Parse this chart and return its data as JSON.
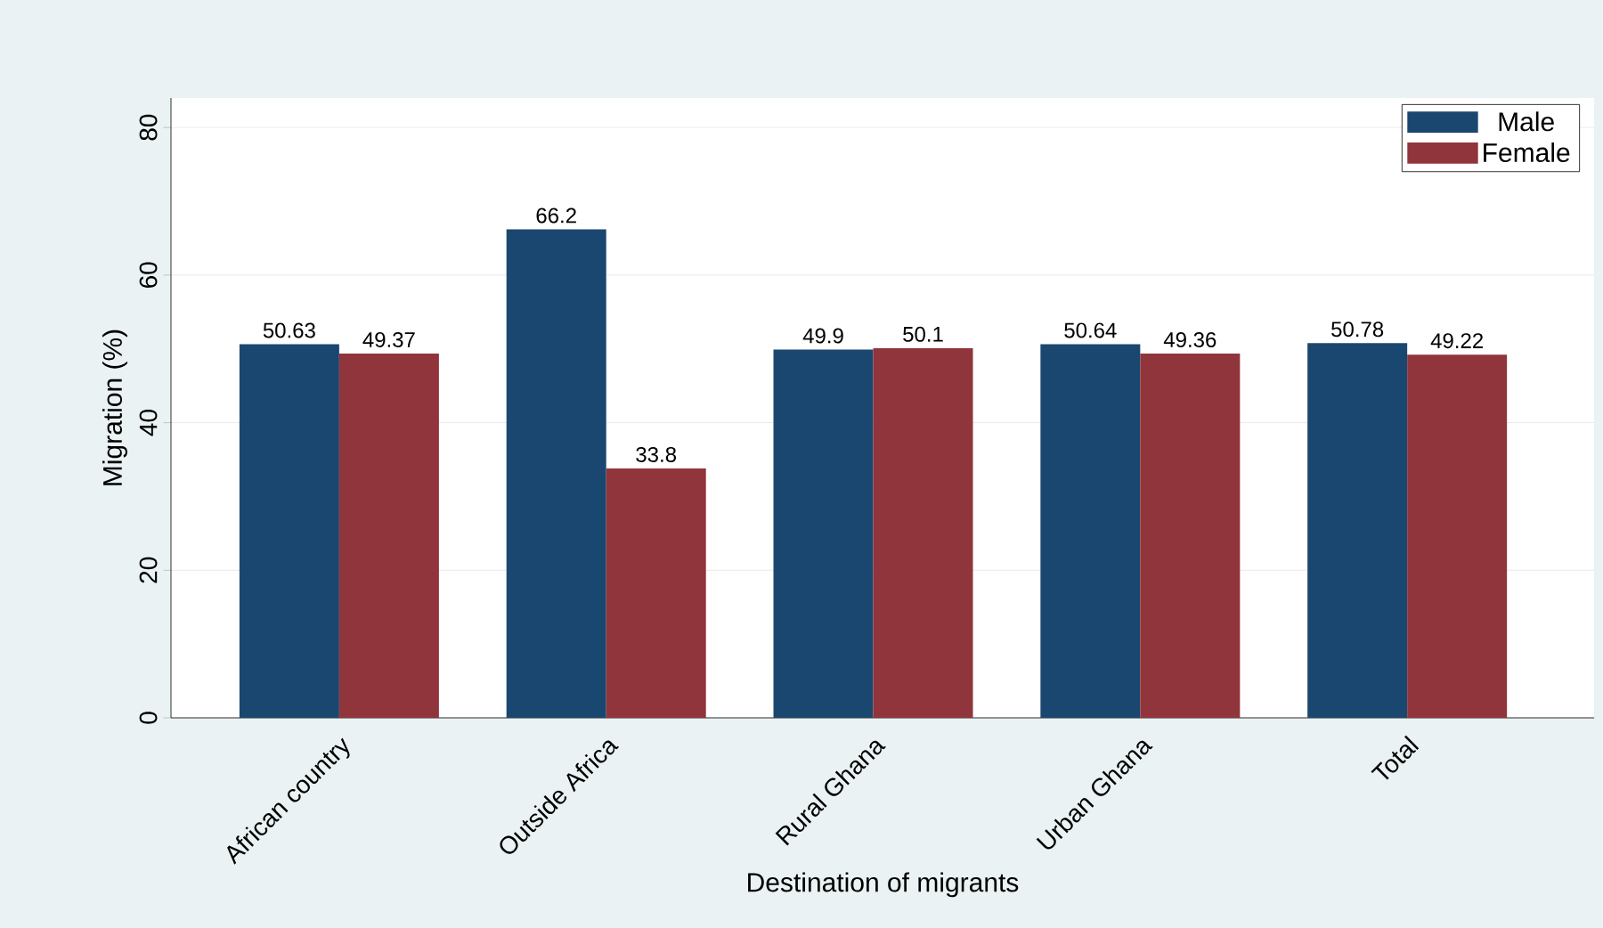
{
  "chart_data": {
    "type": "bar",
    "xlabel": "Destination of migrants",
    "ylabel": "Migration (%)",
    "categories": [
      "African country",
      "Outside Africa",
      "Rural Ghana",
      "Urban Ghana",
      "Total"
    ],
    "series": [
      {
        "name": "Male",
        "color": "#1a476f",
        "values": [
          50.63,
          66.2,
          49.9,
          50.64,
          50.78
        ]
      },
      {
        "name": "Female",
        "color": "#90353b",
        "values": [
          49.37,
          33.8,
          50.1,
          49.36,
          49.22
        ]
      }
    ],
    "ylim": [
      0,
      84
    ],
    "yticks": [
      0,
      20,
      40,
      60,
      80
    ],
    "grid": "y",
    "legend": "top right",
    "data_labels": true
  }
}
